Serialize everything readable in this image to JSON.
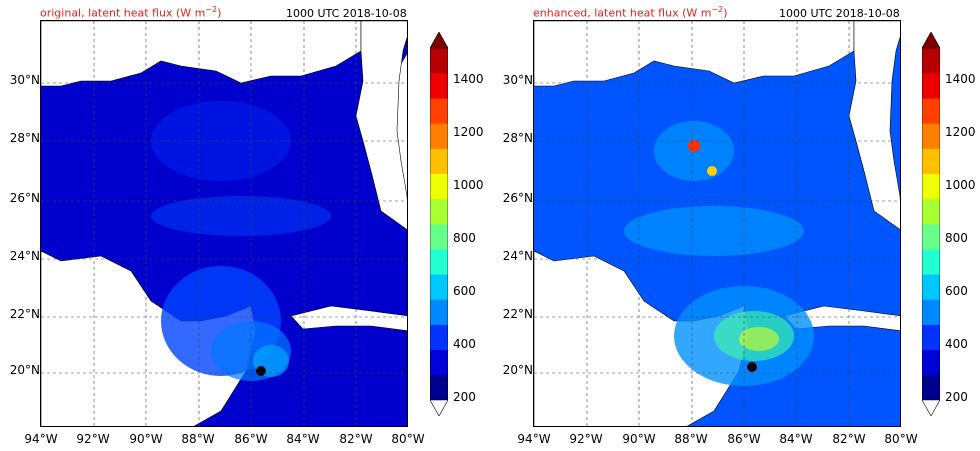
{
  "panels": [
    {
      "title_prefix": "original, latent heat flux (W m",
      "title_exp": "−2",
      "title_suffix": ")",
      "time": "1000 UTC 2018-10-08"
    },
    {
      "title_prefix": "enhanced, latent heat flux (W m",
      "title_exp": "−2",
      "title_suffix": ")",
      "time": "1000 UTC 2018-10-08"
    }
  ],
  "lat_labels": [
    "30°N",
    "28°N",
    "26°N",
    "24°N",
    "22°N",
    "20°N"
  ],
  "lon_labels": [
    "94°W",
    "92°W",
    "90°W",
    "88°W",
    "86°W",
    "84°W",
    "82°W",
    "80°W"
  ],
  "colorbar": {
    "ticks": [
      "1400",
      "1200",
      "1000",
      "800",
      "600",
      "400",
      "200"
    ],
    "colors": [
      "#00008f",
      "#0000d8",
      "#0033ff",
      "#0088ff",
      "#00c8ff",
      "#22ffd0",
      "#66ff88",
      "#aaff33",
      "#eeff00",
      "#ffc000",
      "#ff8000",
      "#ff4000",
      "#ee0000",
      "#b40000"
    ],
    "over_color": "#7f0000",
    "under_color": "#ffffff"
  }
}
